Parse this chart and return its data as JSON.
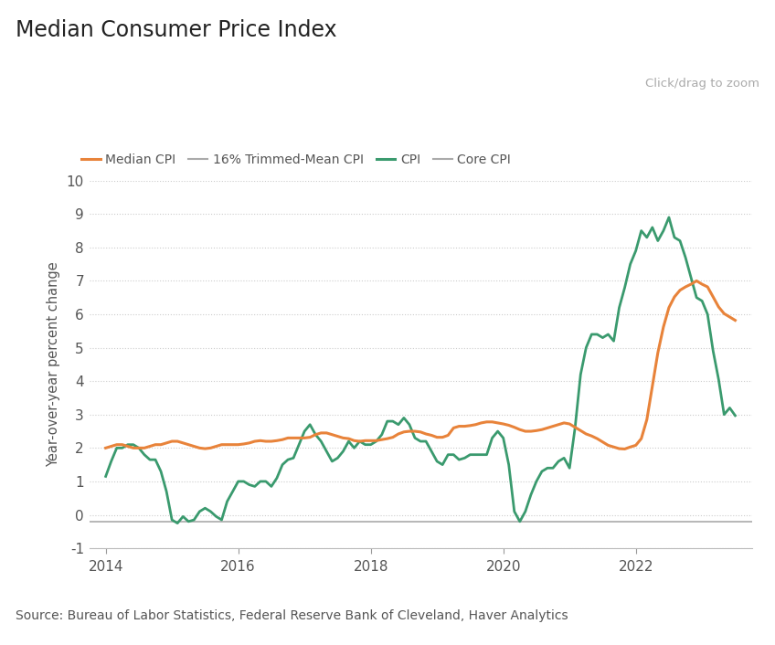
{
  "title": "Median Consumer Price Index",
  "subtitle": "Click/drag to zoom",
  "ylabel": "Year-over-year percent change",
  "source": "Source: Bureau of Labor Statistics, Federal Reserve Bank of Cleveland, Haver Analytics",
  "ylim": [
    -1,
    10
  ],
  "yticks": [
    -1,
    0,
    1,
    2,
    3,
    4,
    5,
    6,
    7,
    8,
    9,
    10
  ],
  "xticks": [
    2014,
    2016,
    2018,
    2020,
    2022
  ],
  "xlim": [
    2013.75,
    2023.75
  ],
  "background_color": "#ffffff",
  "median_cpi_color": "#e8833a",
  "cpi_color": "#3a9a6e",
  "flat_line_color": "#aaaaaa",
  "grid_color": "#cccccc",
  "grid_style": ":",
  "title_fontsize": 17,
  "axis_label_fontsize": 10.5,
  "tick_fontsize": 11,
  "source_fontsize": 10,
  "legend_fontsize": 10,
  "median_cpi_x": [
    2014.0,
    2014.083,
    2014.167,
    2014.25,
    2014.333,
    2014.417,
    2014.5,
    2014.583,
    2014.667,
    2014.75,
    2014.833,
    2014.917,
    2015.0,
    2015.083,
    2015.167,
    2015.25,
    2015.333,
    2015.417,
    2015.5,
    2015.583,
    2015.667,
    2015.75,
    2015.833,
    2015.917,
    2016.0,
    2016.083,
    2016.167,
    2016.25,
    2016.333,
    2016.417,
    2016.5,
    2016.583,
    2016.667,
    2016.75,
    2016.833,
    2016.917,
    2017.0,
    2017.083,
    2017.167,
    2017.25,
    2017.333,
    2017.417,
    2017.5,
    2017.583,
    2017.667,
    2017.75,
    2017.833,
    2017.917,
    2018.0,
    2018.083,
    2018.167,
    2018.25,
    2018.333,
    2018.417,
    2018.5,
    2018.583,
    2018.667,
    2018.75,
    2018.833,
    2018.917,
    2019.0,
    2019.083,
    2019.167,
    2019.25,
    2019.333,
    2019.417,
    2019.5,
    2019.583,
    2019.667,
    2019.75,
    2019.833,
    2019.917,
    2020.0,
    2020.083,
    2020.167,
    2020.25,
    2020.333,
    2020.417,
    2020.5,
    2020.583,
    2020.667,
    2020.75,
    2020.833,
    2020.917,
    2021.0,
    2021.083,
    2021.167,
    2021.25,
    2021.333,
    2021.417,
    2021.5,
    2021.583,
    2021.667,
    2021.75,
    2021.833,
    2021.917,
    2022.0,
    2022.083,
    2022.167,
    2022.25,
    2022.333,
    2022.417,
    2022.5,
    2022.583,
    2022.667,
    2022.75,
    2022.833,
    2022.917,
    2023.0,
    2023.083,
    2023.167,
    2023.25,
    2023.333,
    2023.417,
    2023.5
  ],
  "median_cpi_y": [
    2.0,
    2.05,
    2.1,
    2.1,
    2.05,
    2.0,
    2.0,
    2.0,
    2.05,
    2.1,
    2.1,
    2.15,
    2.2,
    2.2,
    2.15,
    2.1,
    2.05,
    2.0,
    1.98,
    2.0,
    2.05,
    2.1,
    2.1,
    2.1,
    2.1,
    2.12,
    2.15,
    2.2,
    2.22,
    2.2,
    2.2,
    2.22,
    2.25,
    2.3,
    2.3,
    2.3,
    2.3,
    2.32,
    2.4,
    2.45,
    2.45,
    2.4,
    2.35,
    2.3,
    2.28,
    2.22,
    2.2,
    2.22,
    2.22,
    2.22,
    2.25,
    2.28,
    2.32,
    2.42,
    2.48,
    2.5,
    2.5,
    2.48,
    2.42,
    2.38,
    2.32,
    2.32,
    2.38,
    2.6,
    2.65,
    2.65,
    2.67,
    2.7,
    2.75,
    2.78,
    2.78,
    2.75,
    2.72,
    2.68,
    2.62,
    2.55,
    2.5,
    2.5,
    2.52,
    2.55,
    2.6,
    2.65,
    2.7,
    2.75,
    2.72,
    2.62,
    2.52,
    2.42,
    2.36,
    2.28,
    2.18,
    2.08,
    2.03,
    1.98,
    1.97,
    2.03,
    2.08,
    2.28,
    2.85,
    3.85,
    4.85,
    5.62,
    6.2,
    6.52,
    6.72,
    6.82,
    6.9,
    7.0,
    6.9,
    6.82,
    6.52,
    6.22,
    6.02,
    5.92,
    5.82
  ],
  "cpi_x": [
    2014.0,
    2014.083,
    2014.167,
    2014.25,
    2014.333,
    2014.417,
    2014.5,
    2014.583,
    2014.667,
    2014.75,
    2014.833,
    2014.917,
    2015.0,
    2015.083,
    2015.167,
    2015.25,
    2015.333,
    2015.417,
    2015.5,
    2015.583,
    2015.667,
    2015.75,
    2015.833,
    2015.917,
    2016.0,
    2016.083,
    2016.167,
    2016.25,
    2016.333,
    2016.417,
    2016.5,
    2016.583,
    2016.667,
    2016.75,
    2016.833,
    2016.917,
    2017.0,
    2017.083,
    2017.167,
    2017.25,
    2017.333,
    2017.417,
    2017.5,
    2017.583,
    2017.667,
    2017.75,
    2017.833,
    2017.917,
    2018.0,
    2018.083,
    2018.167,
    2018.25,
    2018.333,
    2018.417,
    2018.5,
    2018.583,
    2018.667,
    2018.75,
    2018.833,
    2018.917,
    2019.0,
    2019.083,
    2019.167,
    2019.25,
    2019.333,
    2019.417,
    2019.5,
    2019.583,
    2019.667,
    2019.75,
    2019.833,
    2019.917,
    2020.0,
    2020.083,
    2020.167,
    2020.25,
    2020.333,
    2020.417,
    2020.5,
    2020.583,
    2020.667,
    2020.75,
    2020.833,
    2020.917,
    2021.0,
    2021.083,
    2021.167,
    2021.25,
    2021.333,
    2021.417,
    2021.5,
    2021.583,
    2021.667,
    2021.75,
    2021.833,
    2021.917,
    2022.0,
    2022.083,
    2022.167,
    2022.25,
    2022.333,
    2022.417,
    2022.5,
    2022.583,
    2022.667,
    2022.75,
    2022.833,
    2022.917,
    2023.0,
    2023.083,
    2023.167,
    2023.25,
    2023.333,
    2023.417,
    2023.5
  ],
  "cpi_y": [
    1.15,
    1.6,
    2.0,
    2.0,
    2.1,
    2.1,
    2.0,
    1.8,
    1.65,
    1.65,
    1.3,
    0.7,
    -0.15,
    -0.25,
    -0.05,
    -0.2,
    -0.15,
    0.1,
    0.2,
    0.1,
    -0.05,
    -0.15,
    0.4,
    0.7,
    1.0,
    1.0,
    0.9,
    0.85,
    1.0,
    1.0,
    0.85,
    1.1,
    1.5,
    1.65,
    1.7,
    2.1,
    2.5,
    2.7,
    2.4,
    2.2,
    1.9,
    1.6,
    1.7,
    1.9,
    2.2,
    2.0,
    2.2,
    2.1,
    2.1,
    2.2,
    2.4,
    2.8,
    2.8,
    2.7,
    2.9,
    2.7,
    2.3,
    2.2,
    2.2,
    1.9,
    1.6,
    1.5,
    1.8,
    1.8,
    1.65,
    1.7,
    1.8,
    1.8,
    1.8,
    1.8,
    2.3,
    2.5,
    2.3,
    1.5,
    0.1,
    -0.2,
    0.1,
    0.6,
    1.0,
    1.3,
    1.4,
    1.4,
    1.6,
    1.7,
    1.4,
    2.6,
    4.2,
    5.0,
    5.4,
    5.4,
    5.3,
    5.4,
    5.2,
    6.2,
    6.8,
    7.5,
    7.9,
    8.5,
    8.3,
    8.6,
    8.2,
    8.5,
    8.9,
    8.3,
    8.2,
    7.7,
    7.1,
    6.5,
    6.4,
    6.0,
    4.9,
    4.05,
    3.0,
    3.2,
    2.97
  ],
  "flat_line_y": -0.2,
  "flat_line_x_start": 2013.75,
  "flat_line_x_end": 2023.75
}
